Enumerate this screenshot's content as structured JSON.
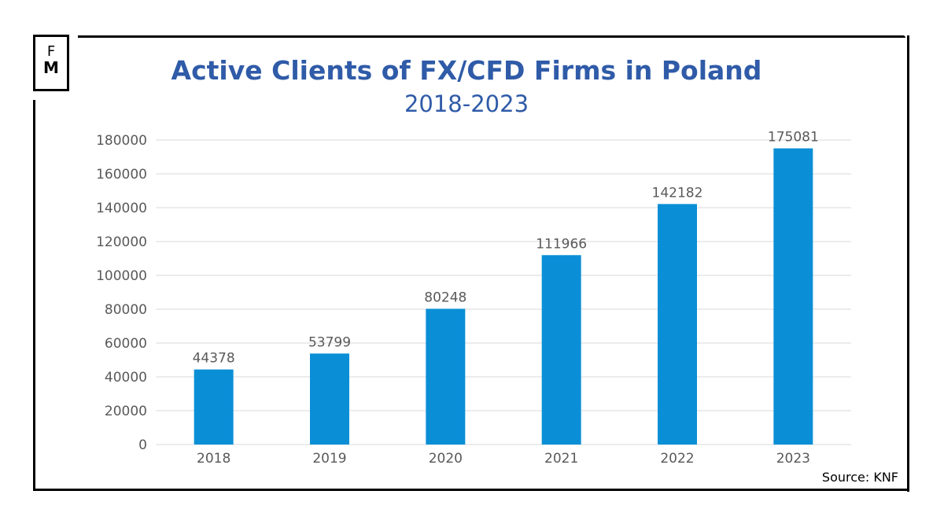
{
  "logo": {
    "line1": "F",
    "line2": "M"
  },
  "source": "Source: KNF",
  "colors": {
    "bar": "#0a8fd6",
    "title": "#2f5ba8",
    "grid": "#d9d9d9"
  },
  "chart_data": {
    "type": "bar",
    "title": "Active Clients of FX/CFD Firms in Poland",
    "subtitle": "2018-2023",
    "xlabel": "",
    "ylabel": "",
    "categories": [
      "2018",
      "2019",
      "2020",
      "2021",
      "2022",
      "2023"
    ],
    "values": [
      44378,
      53799,
      80248,
      111966,
      142182,
      175081
    ],
    "data_labels": [
      "44378",
      "53799",
      "80248",
      "111966",
      "142182",
      "175081"
    ],
    "ylim": [
      0,
      180000
    ],
    "yticks": [
      "0",
      "20000",
      "40000",
      "60000",
      "80000",
      "100000",
      "120000",
      "140000",
      "160000",
      "180000"
    ],
    "grid": true,
    "legend": "none"
  }
}
